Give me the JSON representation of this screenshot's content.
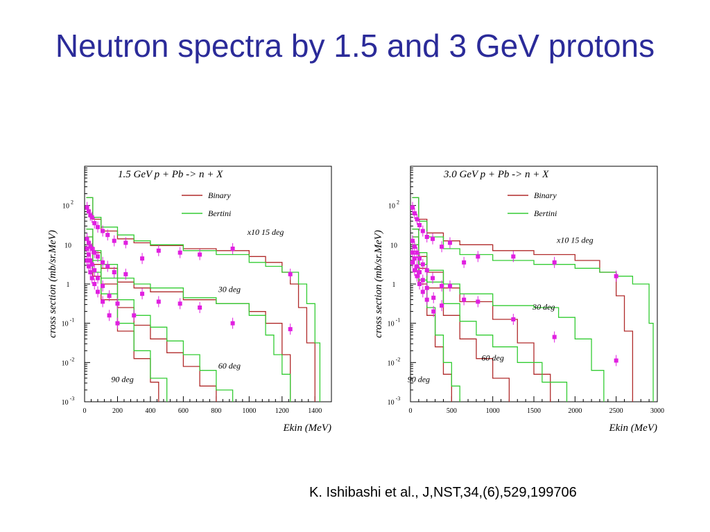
{
  "slide": {
    "title": "Neutron spectra by 1.5 and 3 GeV protons",
    "citation": "K. Ishibashi et al., J,NST,34,(6),529,199706"
  },
  "colors": {
    "title": "#2b2b99",
    "binary": "#b02a2a",
    "bertini": "#33cc33",
    "experiment": "#e020e0"
  },
  "chart_data": [
    {
      "type": "line",
      "title": "1.5 GeV  p + Pb -> n + X",
      "xlabel": "Ekin (MeV)",
      "ylabel": "cross section (mb/sr.MeV)",
      "xlim": [
        0,
        1500
      ],
      "ylim_log10": [
        -3,
        3
      ],
      "y_scale": "log",
      "legend": {
        "placement": "top-center",
        "entries": [
          "Binary",
          "Bertini"
        ]
      },
      "xticks": [
        0,
        200,
        400,
        600,
        800,
        1000,
        1200,
        1400
      ],
      "yticks": [
        {
          "base": "10",
          "exp": "-3",
          "value": -3
        },
        {
          "base": "10",
          "exp": "-2",
          "value": -2
        },
        {
          "base": "10",
          "exp": "-1",
          "value": -1
        },
        {
          "base": "1",
          "exp": "",
          "value": 0
        },
        {
          "base": "10",
          "exp": "",
          "value": 1
        },
        {
          "base": "10",
          "exp": "2",
          "value": 2
        }
      ],
      "annotations": [
        {
          "text": "x10 15 deg",
          "x": 1100,
          "y": 1.25
        },
        {
          "text": "30 deg",
          "x": 880,
          "y": -0.2
        },
        {
          "text": "60 deg",
          "x": 880,
          "y": -2.15
        },
        {
          "text": "90 deg",
          "x": 230,
          "y": -2.5
        }
      ],
      "series": [
        {
          "name": "Binary",
          "group": "15 deg",
          "x": [
            10,
            50,
            100,
            200,
            300,
            400,
            600,
            800,
            1000,
            1100,
            1200,
            1250,
            1300,
            1350,
            1400
          ],
          "y": [
            2.2,
            1.65,
            1.35,
            1.15,
            1.05,
            0.98,
            0.9,
            0.85,
            0.7,
            0.55,
            0.3,
            0.0,
            -0.6,
            -1.5,
            -3.0
          ]
        },
        {
          "name": "Bertini",
          "group": "15 deg",
          "x": [
            10,
            50,
            100,
            200,
            300,
            400,
            600,
            800,
            1000,
            1100,
            1200,
            1300,
            1350,
            1400,
            1430
          ],
          "y": [
            2.2,
            1.7,
            1.45,
            1.25,
            1.1,
            1.0,
            0.85,
            0.75,
            0.55,
            0.45,
            0.3,
            0.0,
            -0.5,
            -1.5,
            -3.0
          ]
        },
        {
          "name": "Binary",
          "group": "30 deg",
          "x": [
            10,
            50,
            100,
            200,
            300,
            400,
            600,
            800,
            1000,
            1100,
            1200,
            1250
          ],
          "y": [
            1.4,
            0.8,
            0.4,
            0.05,
            -0.1,
            -0.2,
            -0.4,
            -0.5,
            -0.7,
            -1.0,
            -1.8,
            -3.0
          ]
        },
        {
          "name": "Bertini",
          "group": "30 deg",
          "x": [
            10,
            50,
            100,
            200,
            300,
            400,
            600,
            800,
            1000,
            1100,
            1150,
            1200,
            1250
          ],
          "y": [
            1.4,
            0.85,
            0.5,
            0.15,
            0.0,
            -0.1,
            -0.35,
            -0.5,
            -0.8,
            -1.3,
            -1.8,
            -2.3,
            -3.0
          ]
        },
        {
          "name": "Binary",
          "group": "60 deg",
          "x": [
            10,
            50,
            100,
            200,
            300,
            400,
            500,
            600,
            700,
            800
          ],
          "y": [
            1.2,
            0.5,
            0.0,
            -0.6,
            -1.05,
            -1.4,
            -1.75,
            -2.1,
            -2.6,
            -3.0
          ]
        },
        {
          "name": "Bertini",
          "group": "60 deg",
          "x": [
            10,
            50,
            100,
            200,
            300,
            400,
            500,
            600,
            700,
            800,
            900
          ],
          "y": [
            1.2,
            0.6,
            0.15,
            -0.4,
            -0.8,
            -1.1,
            -1.45,
            -1.8,
            -2.2,
            -2.7,
            -3.0
          ]
        },
        {
          "name": "Binary",
          "group": "90 deg",
          "x": [
            10,
            50,
            100,
            200,
            300,
            400,
            450
          ],
          "y": [
            1.0,
            0.2,
            -0.4,
            -1.2,
            -1.9,
            -2.5,
            -3.0
          ]
        },
        {
          "name": "Bertini",
          "group": "90 deg",
          "x": [
            10,
            50,
            100,
            200,
            300,
            400,
            500
          ],
          "y": [
            1.0,
            0.3,
            -0.25,
            -1.0,
            -1.7,
            -2.4,
            -3.0
          ]
        }
      ],
      "experiment": {
        "name": "data",
        "marker": "square",
        "x": [
          15,
          25,
          35,
          45,
          60,
          80,
          110,
          140,
          180,
          250,
          350,
          450,
          580,
          700,
          900,
          1250,
          15,
          25,
          35,
          45,
          60,
          80,
          110,
          140,
          180,
          250,
          350,
          450,
          580,
          700,
          900,
          1250,
          15,
          25,
          35,
          45,
          60,
          80,
          110,
          150,
          200,
          300,
          15,
          25,
          35,
          45,
          60,
          80,
          110,
          150,
          200
        ],
        "y": [
          1.95,
          1.85,
          1.75,
          1.7,
          1.55,
          1.45,
          1.35,
          1.25,
          1.1,
          1.05,
          0.65,
          0.85,
          0.8,
          0.75,
          0.9,
          0.25,
          1.15,
          1.05,
          0.95,
          0.9,
          0.8,
          0.7,
          0.55,
          0.45,
          0.3,
          0.25,
          -0.25,
          -0.45,
          -0.5,
          -0.6,
          -1.0,
          -1.15,
          0.9,
          0.75,
          0.6,
          0.5,
          0.35,
          0.15,
          -0.05,
          -0.3,
          -0.5,
          -0.8,
          0.6,
          0.45,
          0.3,
          0.15,
          0.0,
          -0.2,
          -0.45,
          -0.8,
          -1.0
        ]
      }
    },
    {
      "type": "line",
      "title": "3.0 GeV  p + Pb -> n + X",
      "xlabel": "Ekin (MeV)",
      "ylabel": "cross section (mb/sr.MeV)",
      "xlim": [
        0,
        3000
      ],
      "ylim_log10": [
        -3,
        3
      ],
      "y_scale": "log",
      "legend": {
        "placement": "top-center",
        "entries": [
          "Binary",
          "Bertini"
        ]
      },
      "xticks": [
        0,
        500,
        1000,
        1500,
        2000,
        2500,
        3000
      ],
      "yticks": [
        {
          "base": "10",
          "exp": "-3",
          "value": -3
        },
        {
          "base": "10",
          "exp": "-2",
          "value": -2
        },
        {
          "base": "10",
          "exp": "-1",
          "value": -1
        },
        {
          "base": "1",
          "exp": "",
          "value": 0
        },
        {
          "base": "10",
          "exp": "",
          "value": 1
        },
        {
          "base": "10",
          "exp": "2",
          "value": 2
        }
      ],
      "annotations": [
        {
          "text": "x10 15 deg",
          "x": 2000,
          "y": 1.05
        },
        {
          "text": "30 deg",
          "x": 1620,
          "y": -0.65
        },
        {
          "text": "60 deg",
          "x": 1000,
          "y": -1.95
        },
        {
          "text": "90 deg",
          "x": 100,
          "y": -2.5
        }
      ],
      "series": [
        {
          "name": "Binary",
          "group": "15 deg",
          "x": [
            20,
            100,
            200,
            400,
            600,
            1000,
            1500,
            2000,
            2300,
            2500,
            2600,
            2700
          ],
          "y": [
            2.2,
            1.65,
            1.3,
            1.1,
            1.0,
            0.85,
            0.75,
            0.6,
            0.3,
            -0.3,
            -1.2,
            -3.0
          ]
        },
        {
          "name": "Bertini",
          "group": "15 deg",
          "x": [
            20,
            100,
            200,
            400,
            600,
            1000,
            1500,
            2000,
            2300,
            2500,
            2700,
            2900,
            2950
          ],
          "y": [
            2.2,
            1.6,
            1.2,
            0.9,
            0.75,
            0.6,
            0.5,
            0.4,
            0.3,
            0.2,
            0.0,
            -1.0,
            -3.0
          ]
        },
        {
          "name": "Binary",
          "group": "30 deg",
          "x": [
            20,
            100,
            200,
            400,
            600,
            1000,
            1300,
            1500,
            1700
          ],
          "y": [
            1.4,
            0.7,
            0.3,
            -0.1,
            -0.45,
            -0.9,
            -1.5,
            -2.3,
            -3.0
          ]
        },
        {
          "name": "Bertini",
          "group": "30 deg",
          "x": [
            20,
            100,
            200,
            400,
            600,
            1000,
            1500,
            1800,
            2000,
            2200,
            2350
          ],
          "y": [
            1.4,
            0.8,
            0.35,
            0.0,
            -0.25,
            -0.55,
            -0.6,
            -0.85,
            -1.4,
            -2.2,
            -3.0
          ]
        },
        {
          "name": "Binary",
          "group": "60 deg",
          "x": [
            20,
            100,
            200,
            400,
            600,
            800,
            1000,
            1200
          ],
          "y": [
            1.2,
            0.4,
            -0.1,
            -0.8,
            -1.4,
            -1.9,
            -2.4,
            -3.0
          ]
        },
        {
          "name": "Bertini",
          "group": "60 deg",
          "x": [
            20,
            100,
            200,
            400,
            600,
            800,
            1000,
            1300,
            1600,
            1900
          ],
          "y": [
            1.2,
            0.5,
            0.05,
            -0.5,
            -0.95,
            -1.3,
            -1.6,
            -2.0,
            -2.5,
            -3.0
          ]
        },
        {
          "name": "Binary",
          "group": "90 deg",
          "x": [
            20,
            100,
            200,
            300,
            400,
            500
          ],
          "y": [
            1.0,
            0.0,
            -0.8,
            -1.6,
            -2.3,
            -3.0
          ]
        },
        {
          "name": "Bertini",
          "group": "90 deg",
          "x": [
            20,
            100,
            200,
            300,
            400,
            500,
            600
          ],
          "y": [
            1.0,
            0.1,
            -0.6,
            -1.3,
            -2.0,
            -2.6,
            -3.0
          ]
        }
      ],
      "experiment": {
        "name": "data",
        "marker": "square",
        "x": [
          25,
          50,
          80,
          110,
          150,
          200,
          270,
          380,
          480,
          650,
          820,
          1250,
          1750,
          2500,
          25,
          50,
          80,
          110,
          150,
          200,
          270,
          380,
          480,
          650,
          820,
          1250,
          1750,
          2500,
          25,
          50,
          80,
          110,
          150,
          200,
          280,
          380,
          25,
          50,
          80,
          110,
          150,
          200,
          280
        ],
        "y": [
          1.95,
          1.8,
          1.65,
          1.5,
          1.35,
          1.2,
          1.15,
          0.95,
          1.05,
          0.55,
          0.7,
          0.7,
          0.55,
          0.2,
          1.1,
          0.95,
          0.8,
          0.65,
          0.5,
          0.35,
          0.15,
          -0.05,
          -0.05,
          -0.4,
          -0.45,
          -0.9,
          -1.35,
          -1.95,
          0.8,
          0.65,
          0.45,
          0.3,
          0.1,
          -0.1,
          -0.35,
          -0.55,
          0.55,
          0.35,
          0.2,
          0.0,
          -0.2,
          -0.4,
          -0.7
        ]
      }
    }
  ]
}
